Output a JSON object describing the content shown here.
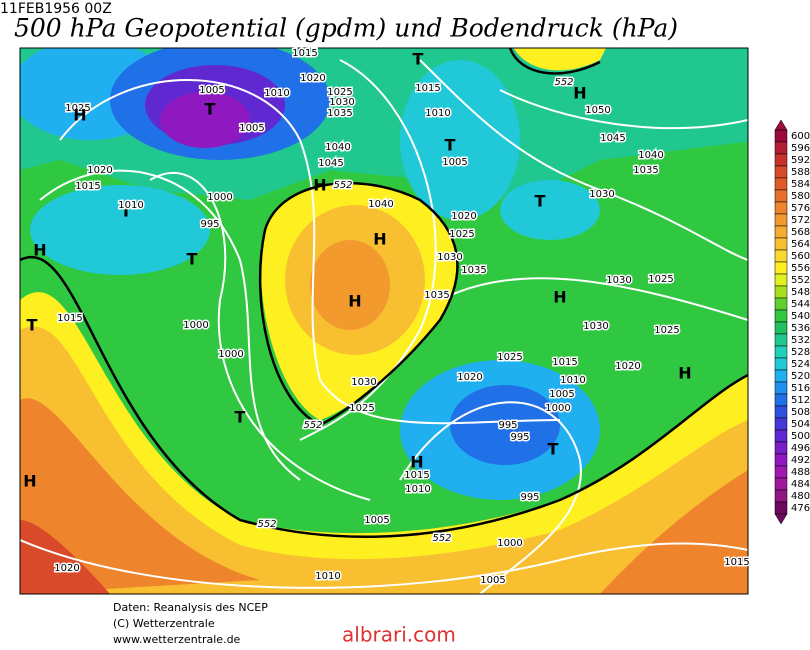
{
  "header": {
    "date": "11FEB1956 00Z",
    "title": "500 hPa Geopotential (gpdm) und Bodendruck (hPa)"
  },
  "legend": {
    "labels": [
      600,
      596,
      592,
      588,
      584,
      580,
      576,
      572,
      568,
      564,
      560,
      556,
      552,
      548,
      544,
      540,
      536,
      532,
      528,
      524,
      520,
      516,
      512,
      508,
      504,
      500,
      496,
      492,
      488,
      484,
      480,
      476
    ],
    "colors": [
      "#9c0a3c",
      "#b41e32",
      "#c8322d",
      "#d84a2a",
      "#e05a28",
      "#e8702a",
      "#ee842c",
      "#f29a2e",
      "#f5ac30",
      "#f8c030",
      "#fbd830",
      "#fef020",
      "#e0f020",
      "#a8e020",
      "#60d030",
      "#30c840",
      "#20c060",
      "#20c890",
      "#20d0b8",
      "#20c8d8",
      "#20b0f0",
      "#2090f0",
      "#2070e8",
      "#3050e0",
      "#4838d8",
      "#6028d0",
      "#7820c8",
      "#9018c0",
      "#a018b0",
      "#a0189c",
      "#901880",
      "#700860"
    ]
  },
  "map": {
    "labels": [
      "1025",
      "H",
      "1020",
      "1015",
      "T",
      "1005",
      "1010",
      "1005",
      "1015",
      "1020",
      "1025",
      "1030",
      "1035",
      "T",
      "1015",
      "1010",
      "T",
      "1005",
      "H",
      "1050",
      "1045",
      "1040",
      "1035",
      "1040",
      "1045",
      "H",
      "1040",
      "T",
      "1010",
      "1000",
      "995",
      "T",
      "H",
      "H",
      "H",
      "1020",
      "1025",
      "1030",
      "T",
      "1030",
      "1035",
      "1035",
      "1030",
      "1025",
      "H",
      "1030",
      "1025",
      "H",
      "1020",
      "T",
      "1015",
      "1000",
      "1000",
      "T",
      "1030",
      "1025",
      "1025",
      "1020",
      "1015",
      "1010",
      "1005",
      "1000",
      "995",
      "995",
      "T",
      "H",
      "1015",
      "1010",
      "995",
      "H",
      "1005",
      "1000",
      "1020",
      "1010",
      "1005",
      "1015",
      "552",
      "552",
      "552",
      "552",
      "552"
    ]
  },
  "footer": {
    "lines": [
      "Daten: Reanalysis des NCEP",
      "(C) Wetterzentrale",
      "www.wetterzentrale.de"
    ]
  },
  "watermark": "albrari.com"
}
